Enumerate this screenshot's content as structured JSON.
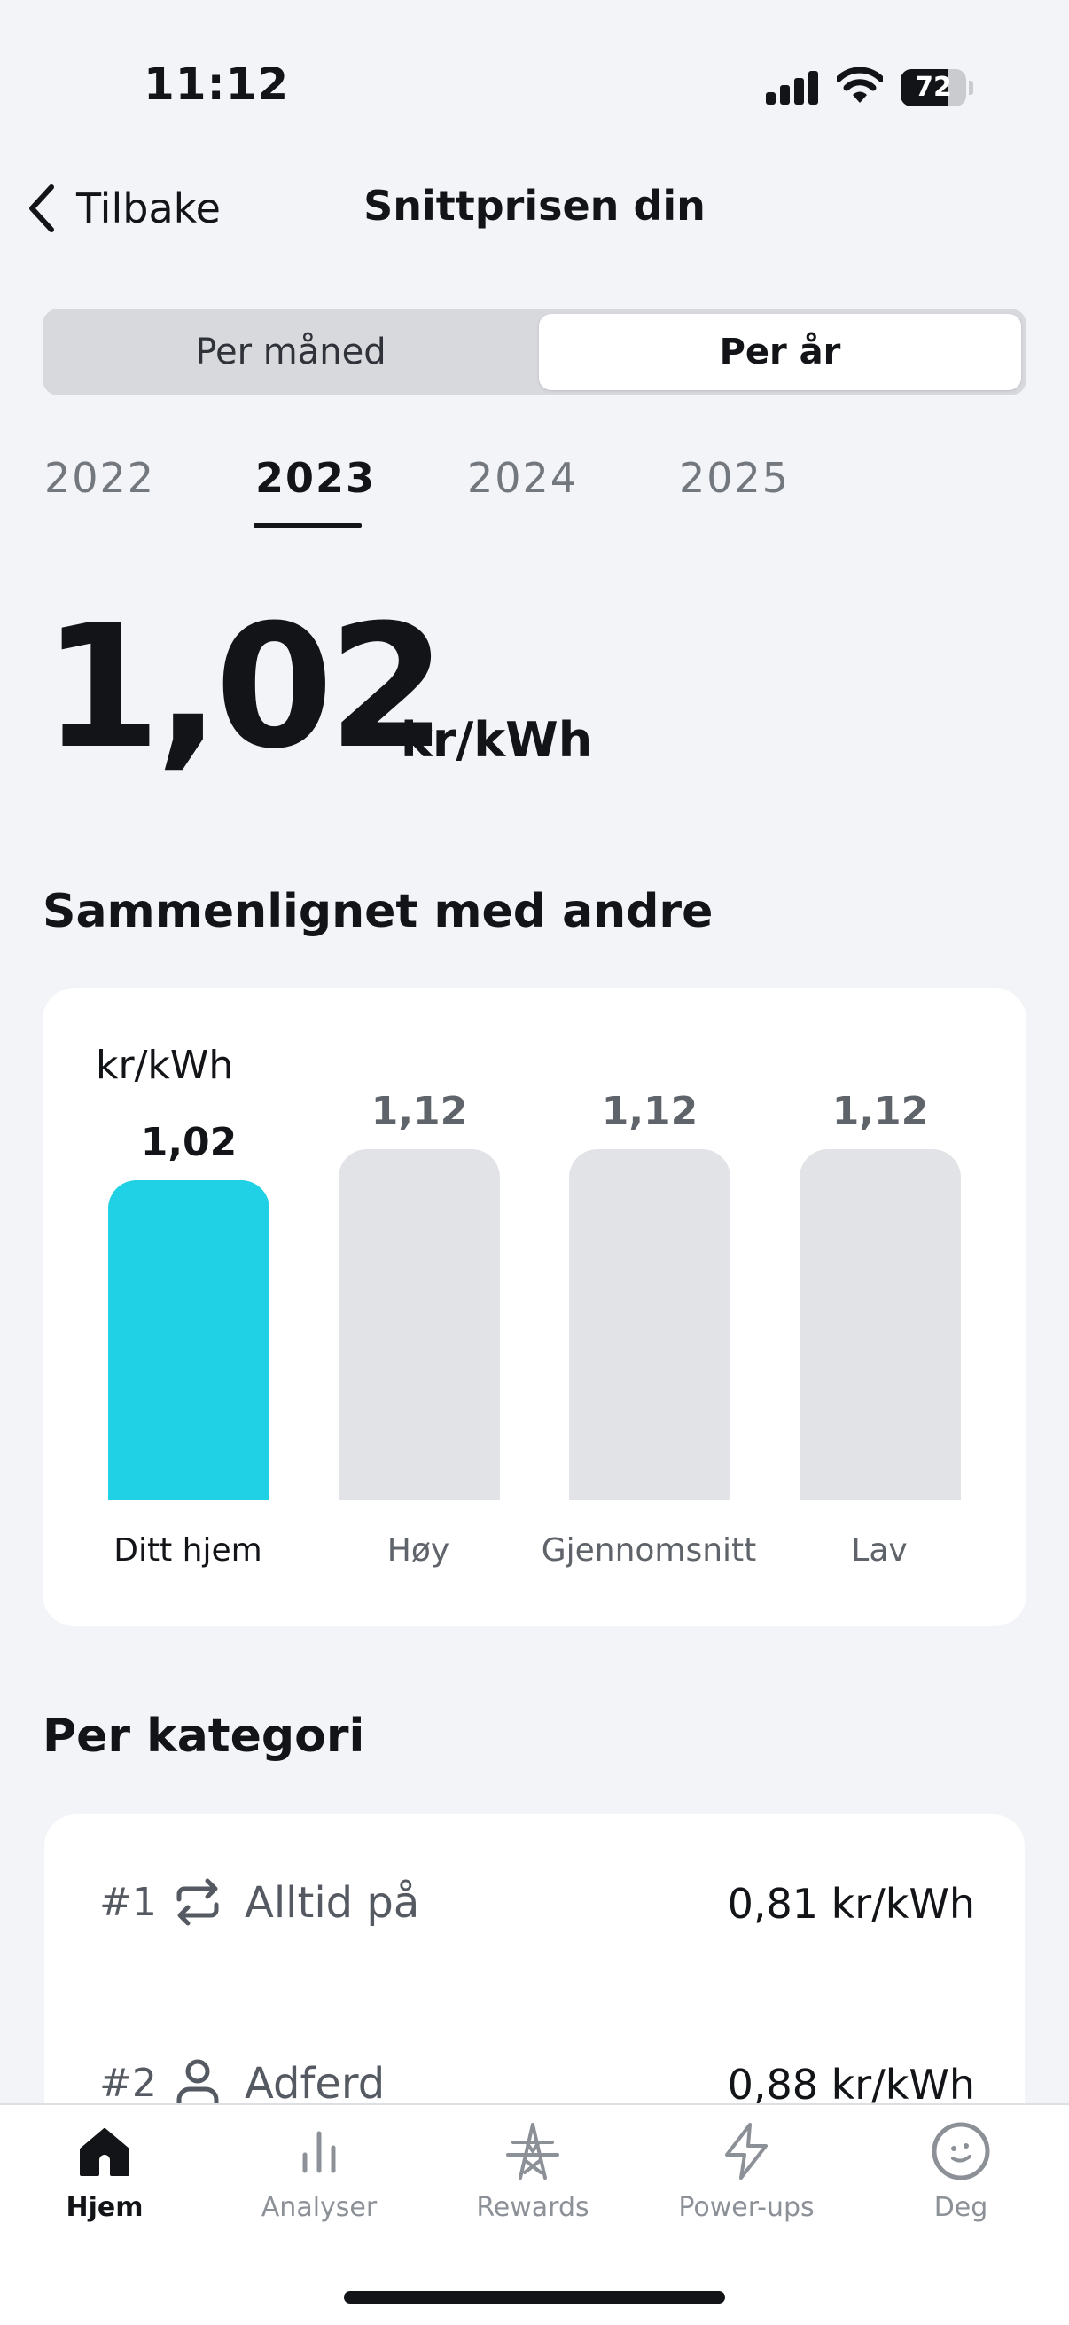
{
  "status_bar": {
    "time": "11:12",
    "battery_level": "72",
    "battery_fraction": 0.72
  },
  "header": {
    "back_label": "Tilbake",
    "title": "Snittprisen din"
  },
  "segmented": {
    "options": [
      "Per måned",
      "Per år"
    ],
    "selected": "Per år"
  },
  "years": {
    "items": [
      "2022",
      "2023",
      "2024",
      "2025"
    ],
    "selected": "2023"
  },
  "price": {
    "value": "1,02",
    "unit": "kr/kWh"
  },
  "comparison": {
    "title": "Sammenlignet med andre"
  },
  "chart_data": {
    "type": "bar",
    "title": "",
    "ylabel": "kr/kWh",
    "categories": [
      "Ditt hjem",
      "Høy",
      "Gjennomsnitt",
      "Lav"
    ],
    "values": [
      1.02,
      1.12,
      1.12,
      1.12
    ],
    "value_labels": [
      "1,02",
      "1,12",
      "1,12",
      "1,12"
    ],
    "highlight_index": 0,
    "ylim": [
      0,
      1.12
    ],
    "grid": false,
    "colors": {
      "highlight": "#20d0e5",
      "default": "#e1e3e7"
    }
  },
  "categories_section": {
    "title": "Per kategori",
    "items": [
      {
        "rank": "#1",
        "icon": "repeat-icon",
        "name": "Alltid på",
        "value": "0,81 kr/kWh"
      },
      {
        "rank": "#2",
        "icon": "person-icon",
        "name": "Adferd",
        "value": "0,88 kr/kWh"
      }
    ]
  },
  "tab_bar": {
    "items": [
      {
        "label": "Hjem",
        "icon": "home-icon",
        "active": true
      },
      {
        "label": "Analyser",
        "icon": "chart-icon",
        "active": false
      },
      {
        "label": "Rewards",
        "icon": "power-tower-icon",
        "active": false
      },
      {
        "label": "Power-ups",
        "icon": "lightning-icon",
        "active": false
      },
      {
        "label": "Deg",
        "icon": "profile-face-icon",
        "active": false
      }
    ]
  }
}
